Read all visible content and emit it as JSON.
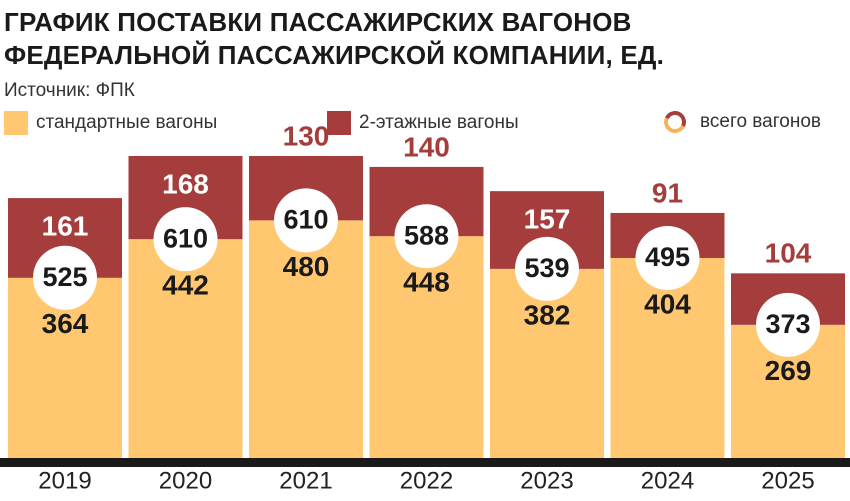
{
  "header": {
    "title_line1": "ГРАФИК ПОСТАВКИ ПАССАЖИРСКИХ ВАГОНОВ",
    "title_line2": "ФЕДЕРАЛЬНОЙ ПАССАЖИРСКОЙ КОМПАНИИ, ЕД.",
    "source": "Источник: ФПК"
  },
  "legend": {
    "standard": "стандартные вагоны",
    "double": "2-этажные вагоны",
    "total": "всего вагонов"
  },
  "colors": {
    "standard": "#ffc870",
    "double": "#a63d3d",
    "total_text": "#1a1a1a",
    "baseline": "#1a1a1a"
  },
  "chart_data": {
    "type": "bar",
    "stacked": true,
    "categories": [
      "2019",
      "2020",
      "2021",
      "2022",
      "2023",
      "2024",
      "2025"
    ],
    "series": [
      {
        "name": "стандартные вагоны",
        "values": [
          364,
          442,
          480,
          448,
          382,
          404,
          269
        ]
      },
      {
        "name": "2-этажные вагоны",
        "values": [
          161,
          168,
          130,
          140,
          157,
          91,
          104
        ]
      }
    ],
    "totals_name": "всего вагонов",
    "totals": [
      525,
      610,
      610,
      588,
      539,
      495,
      373
    ],
    "ylim": [
      0,
      610
    ],
    "legend_position": "top"
  }
}
